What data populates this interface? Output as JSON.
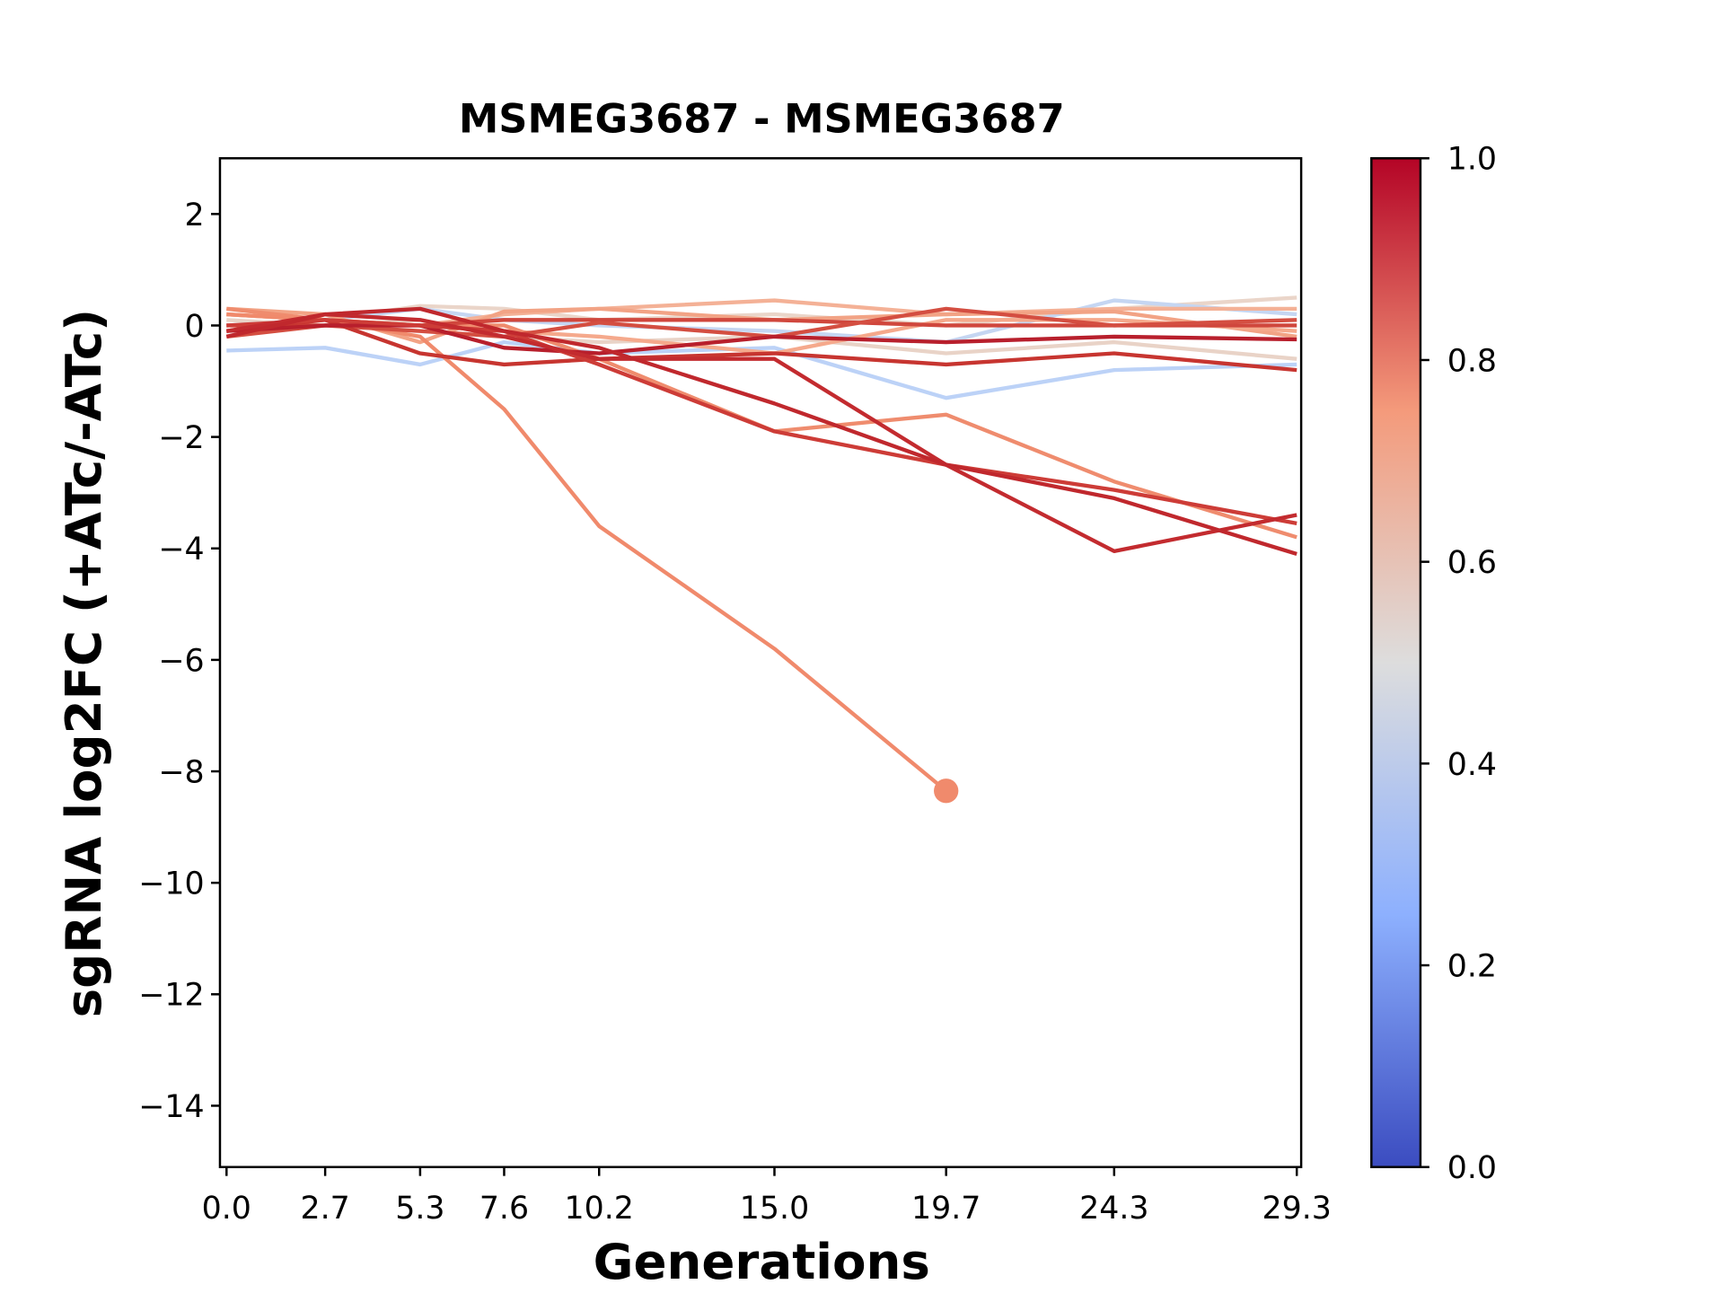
{
  "chart_data": {
    "type": "line",
    "title": "MSMEG3687 - MSMEG3687",
    "xlabel": "Generations",
    "ylabel": "sgRNA log2FC (+ATc/-ATc)",
    "x": [
      0,
      2.7,
      5.3,
      7.6,
      10.2,
      15,
      19.7,
      24.3,
      29.3
    ],
    "xlim": [
      -0.18,
      29.42
    ],
    "xticks": [
      {
        "value": 0,
        "label": "0.0"
      },
      2.7,
      5.3,
      7.6,
      10.2,
      {
        "value": 15,
        "label": "15.0"
      },
      19.7,
      24.3,
      29.3
    ],
    "ylim": [
      -15.1,
      3
    ],
    "yticks": [
      {
        "value": -14,
        "label": "−14"
      },
      {
        "value": -12,
        "label": "−12"
      },
      {
        "value": -10,
        "label": "−10"
      },
      {
        "value": -8,
        "label": "−8"
      },
      {
        "value": -6,
        "label": "−6"
      },
      {
        "value": -4,
        "label": "−4"
      },
      {
        "value": -2,
        "label": "−2"
      },
      0,
      2
    ],
    "grid": false,
    "series": [
      {
        "color": "#ead5c9",
        "values": [
          0,
          0.1,
          0.35,
          0.3,
          0.1,
          0.2,
          0,
          0.3,
          0.5
        ]
      },
      {
        "color": "#e9d3c7",
        "values": [
          0.1,
          0,
          0.1,
          -0.2,
          -0.3,
          -0.2,
          -0.5,
          -0.3,
          -0.6
        ]
      },
      {
        "color": "#bcd2f7",
        "values": [
          -0.45,
          -0.4,
          -0.7,
          -0.3,
          -0.5,
          -0.4,
          -1.3,
          -0.8,
          -0.7
        ]
      },
      {
        "color": "#c5d6f2",
        "values": [
          0,
          0.1,
          0.3,
          0.1,
          0,
          -0.1,
          -0.3,
          0.45,
          0.2
        ]
      },
      {
        "color": "#f4b196",
        "values": [
          0.2,
          0.1,
          0,
          0.2,
          0.3,
          0.45,
          0.2,
          0.3,
          0.3
        ]
      },
      {
        "color": "#f2a385",
        "values": [
          0.3,
          0.2,
          -0.3,
          0.25,
          0.3,
          0.1,
          0.2,
          0.25,
          -0.2
        ]
      },
      {
        "color": "#f5a98c",
        "values": [
          0.2,
          0.1,
          0,
          -0.1,
          -0.2,
          -0.5,
          0.1,
          0.1,
          -0.1
        ]
      },
      {
        "color": "#ef8c6e",
        "values": [
          0.3,
          0.1,
          0,
          0,
          -0.6,
          -1.9,
          -1.6,
          -2.8,
          -3.8
        ]
      },
      {
        "color": "#f08a6c",
        "marker": "o",
        "values": [
          0.2,
          0.1,
          -0.2,
          -1.5,
          -3.6,
          -5.8,
          -8.35,
          null,
          null
        ]
      },
      {
        "color": "#d0473d",
        "values": [
          0,
          0,
          0,
          0.1,
          0.1,
          0.1,
          0,
          0,
          0
        ]
      },
      {
        "color": "#d44e41",
        "values": [
          -0.2,
          0,
          -0.1,
          -0.2,
          0.05,
          -0.2,
          0.3,
          0,
          0.1
        ]
      },
      {
        "color": "#c73530",
        "values": [
          -0.1,
          0.1,
          -0.5,
          -0.7,
          -0.6,
          -0.5,
          -0.7,
          -0.5,
          -0.8
        ]
      },
      {
        "color": "#b81f2c",
        "values": [
          -0.1,
          0,
          0,
          -0.4,
          -0.5,
          -0.2,
          -0.3,
          -0.2,
          -0.25
        ]
      },
      {
        "color": "#cd3c37",
        "values": [
          0,
          0.1,
          0,
          -0.1,
          -0.7,
          -1.9,
          -2.5,
          -2.95,
          -3.55
        ]
      },
      {
        "color": "#c32b2f",
        "values": [
          -0.1,
          0.2,
          0.1,
          -0.2,
          -0.6,
          -0.6,
          -2.5,
          -4.05,
          -3.4
        ]
      },
      {
        "color": "#c0282d",
        "values": [
          -0.2,
          0.2,
          0.3,
          -0.1,
          -0.4,
          -1.4,
          -2.5,
          -3.1,
          -4.1
        ]
      }
    ],
    "colorbar": {
      "cmap": "coolwarm",
      "lim": [
        0,
        1
      ],
      "ticks": [
        {
          "value": 0,
          "label": "0.0"
        },
        0.2,
        0.4,
        0.6,
        0.8,
        {
          "value": 1,
          "label": "1.0"
        }
      ]
    }
  }
}
